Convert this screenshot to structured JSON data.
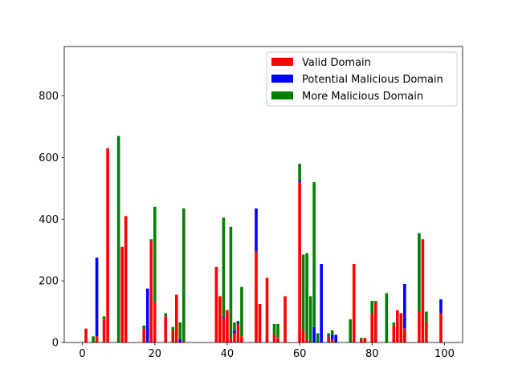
{
  "chart_data": {
    "type": "bar",
    "stacked": true,
    "x": [
      1,
      3,
      4,
      6,
      7,
      10,
      11,
      12,
      17,
      18,
      19,
      20,
      23,
      25,
      26,
      27,
      28,
      37,
      38,
      39,
      40,
      41,
      42,
      43,
      44,
      48,
      49,
      51,
      53,
      54,
      56,
      60,
      61,
      62,
      63,
      64,
      65,
      66,
      68,
      69,
      70,
      74,
      75,
      77,
      78,
      80,
      81,
      84,
      86,
      87,
      88,
      89,
      93,
      94,
      95,
      99
    ],
    "series": [
      {
        "name": "Valid Domain",
        "color": "#ff0000",
        "values": [
          45,
          0,
          20,
          75,
          630,
          0,
          310,
          410,
          45,
          0,
          330,
          130,
          85,
          40,
          155,
          0,
          5,
          245,
          150,
          80,
          105,
          15,
          30,
          60,
          20,
          295,
          125,
          210,
          25,
          15,
          150,
          520,
          40,
          10,
          0,
          0,
          0,
          0,
          20,
          10,
          0,
          0,
          255,
          10,
          15,
          95,
          130,
          0,
          55,
          105,
          95,
          45,
          100,
          335,
          65,
          95
        ]
      },
      {
        "name": "Potential Malicious Domain",
        "color": "#0000ff",
        "values": [
          0,
          0,
          255,
          0,
          0,
          0,
          0,
          0,
          0,
          175,
          0,
          0,
          0,
          0,
          0,
          10,
          0,
          0,
          0,
          5,
          0,
          0,
          10,
          5,
          0,
          140,
          0,
          0,
          0,
          0,
          0,
          5,
          0,
          0,
          0,
          50,
          0,
          255,
          0,
          15,
          25,
          0,
          0,
          0,
          0,
          0,
          0,
          0,
          0,
          0,
          0,
          145,
          0,
          0,
          0,
          45
        ]
      },
      {
        "name": "More Malicious Domain",
        "color": "#008000",
        "values": [
          0,
          20,
          0,
          10,
          0,
          670,
          0,
          0,
          10,
          0,
          5,
          310,
          10,
          10,
          0,
          55,
          430,
          0,
          0,
          320,
          0,
          360,
          25,
          5,
          160,
          0,
          0,
          0,
          35,
          45,
          0,
          55,
          245,
          280,
          150,
          470,
          30,
          0,
          10,
          15,
          0,
          75,
          0,
          5,
          0,
          40,
          5,
          160,
          10,
          0,
          0,
          0,
          255,
          0,
          35,
          0
        ]
      }
    ],
    "xticks": [
      0,
      20,
      40,
      60,
      80,
      100
    ],
    "yticks": [
      0,
      200,
      400,
      600,
      800
    ],
    "xlim": [
      -5,
      105
    ],
    "ylim": [
      0,
      960
    ],
    "title": "",
    "xlabel": "",
    "ylabel": "",
    "legend_position": "top-right",
    "grid": false
  }
}
